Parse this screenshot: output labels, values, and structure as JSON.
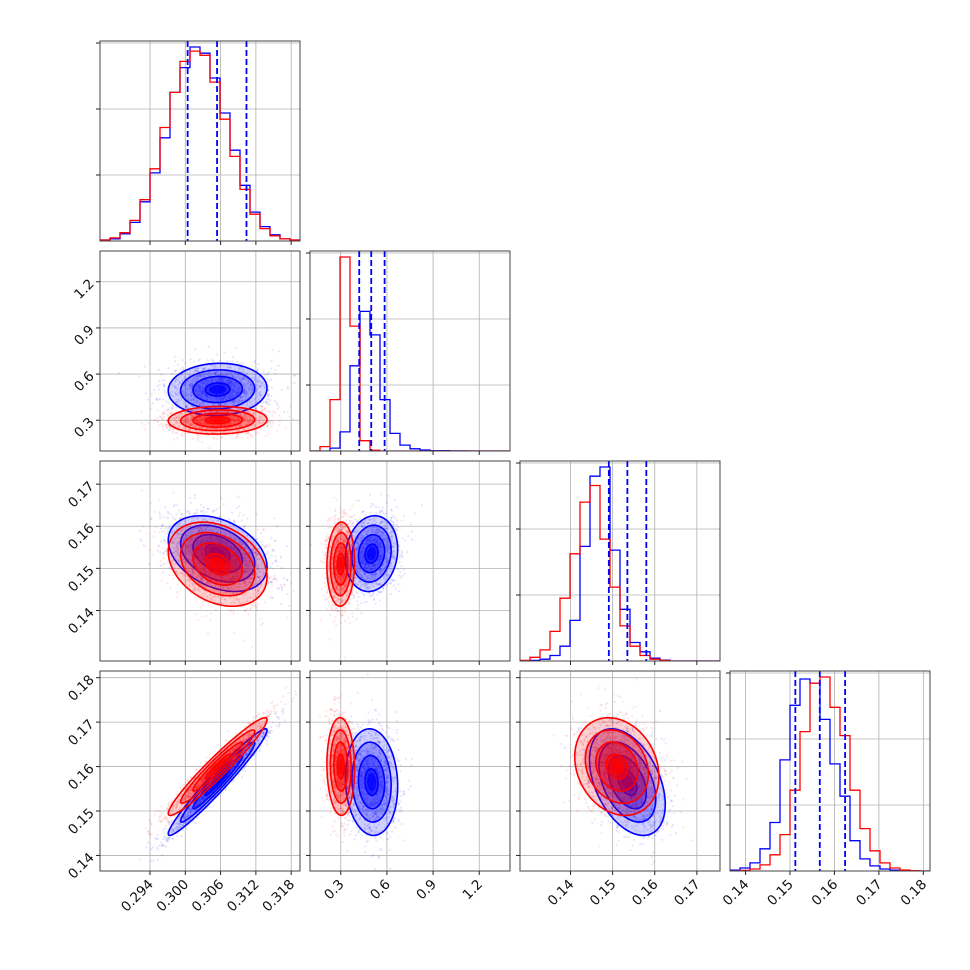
{
  "chart_data": {
    "type": "corner",
    "parameters": 4,
    "series": [
      {
        "name": "",
        "color": "#0000ff",
        "mean": [
          0.3055,
          0.5,
          0.1535,
          0.1565
        ],
        "std": [
          0.0042,
          0.085,
          0.0045,
          0.006
        ],
        "corr": [
          [
            1,
            0.05,
            -0.35,
            0.97
          ],
          [
            0.05,
            1,
            0.12,
            -0.08
          ],
          [
            -0.35,
            0.12,
            1,
            -0.42
          ],
          [
            0.97,
            -0.08,
            -0.42,
            1
          ]
        ]
      },
      {
        "name": "",
        "color": "#ff0000",
        "mean": [
          0.3055,
          0.3,
          0.151,
          0.16
        ],
        "std": [
          0.0042,
          0.045,
          0.005,
          0.0055
        ],
        "corr": [
          [
            1,
            0.05,
            -0.3,
            0.96
          ],
          [
            0.05,
            1,
            0.05,
            -0.05
          ],
          [
            -0.3,
            0.05,
            1,
            -0.2
          ],
          [
            0.96,
            -0.05,
            -0.2,
            1
          ]
        ]
      }
    ],
    "diagonal_histograms": [
      {
        "param": 0,
        "bins": [
          0.2855,
          0.3195,
          20
        ],
        "blue": [
          0.5,
          1,
          3.5,
          9,
          19,
          33,
          50,
          72,
          84,
          94,
          91,
          79,
          62,
          44,
          27,
          14,
          7,
          3,
          1,
          0.5
        ],
        "red": [
          0.5,
          1.5,
          4,
          10,
          20,
          35,
          55,
          72,
          87,
          92,
          90,
          77,
          59,
          41,
          25,
          13,
          6,
          2.5,
          1,
          0.5
        ],
        "quantiles": [
          0.3004,
          0.3054,
          0.3104
        ]
      },
      {
        "param": 1,
        "bins": [
          0.1,
          1.4,
          20
        ],
        "blue": [
          0,
          0,
          2,
          13,
          58,
          95,
          79,
          35,
          12,
          4,
          1.5,
          0.7,
          0.3,
          0.2,
          0.1,
          0.05,
          0,
          0,
          0,
          0
        ],
        "red": [
          0,
          3,
          35,
          132,
          85,
          7,
          0.5,
          0,
          0,
          0,
          0,
          0,
          0,
          0,
          0,
          0,
          0,
          0,
          0,
          0
        ],
        "quantiles": [
          0.42,
          0.498,
          0.585
        ]
      },
      {
        "param": 2,
        "bins": [
          0.128,
          0.1755,
          20
        ],
        "blue": [
          0,
          0.3,
          1,
          3,
          8,
          22,
          62,
          100,
          105,
          60,
          28,
          10,
          5,
          1.5,
          0.5,
          0,
          0,
          0,
          0,
          0
        ],
        "red": [
          0.3,
          2,
          6,
          16,
          34,
          58,
          86,
          95,
          66,
          40,
          19,
          8,
          3,
          1,
          0.3,
          0,
          0,
          0,
          0,
          0
        ],
        "quantiles": [
          0.1491,
          0.1535,
          0.158
        ]
      },
      {
        "param": 3,
        "bins": [
          0.1365,
          0.1815,
          20
        ],
        "blue": [
          0.4,
          1.5,
          4,
          11,
          24,
          55,
          82,
          95,
          93,
          75,
          53,
          37,
          15,
          6,
          2.5,
          1,
          0.4,
          0,
          0,
          0
        ],
        "red": [
          0,
          0.3,
          1,
          3,
          8,
          18,
          40,
          69,
          93,
          96,
          81,
          67,
          40,
          21,
          10,
          4,
          1.5,
          0.5,
          0.2,
          0
        ],
        "quantiles": [
          0.1512,
          0.1567,
          0.1624
        ]
      }
    ],
    "axes": [
      {
        "lim": [
          0.2855,
          0.3195
        ],
        "ticks": [
          0.294,
          0.3,
          0.306,
          0.312,
          0.318
        ],
        "ticklabels": [
          "0.294",
          "0.300",
          "0.306",
          "0.312",
          "0.318"
        ]
      },
      {
        "lim": [
          0.1,
          1.4
        ],
        "ticks": [
          0.3,
          0.6,
          0.9,
          1.2
        ],
        "ticklabels": [
          "0.3",
          "0.6",
          "0.9",
          "1.2"
        ]
      },
      {
        "lim": [
          0.128,
          0.1755
        ],
        "ticks": [
          0.14,
          0.15,
          0.16,
          0.17
        ],
        "ticklabels": [
          "0.14",
          "0.15",
          "0.16",
          "0.17"
        ]
      },
      {
        "lim": [
          0.1365,
          0.1815
        ],
        "ticks": [
          0.14,
          0.15,
          0.16,
          0.17,
          0.18
        ],
        "ticklabels": [
          "0.14",
          "0.15",
          "0.16",
          "0.17",
          "0.18"
        ]
      }
    ],
    "contour_levels_sigma": [
      0.5,
      1.0,
      1.5,
      2.0
    ],
    "grid": true,
    "xlabel": "",
    "ylabel": "",
    "title": ""
  }
}
